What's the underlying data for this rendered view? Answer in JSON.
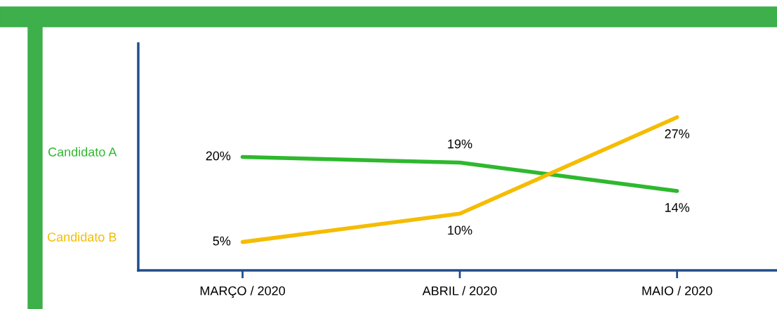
{
  "chart_data": {
    "type": "line",
    "categories": [
      "MARÇO / 2020",
      "ABRIL / 2020",
      "MAIO / 2020"
    ],
    "series": [
      {
        "name": "Candidato A",
        "color": "#2eb82e",
        "values": [
          20,
          19,
          14
        ],
        "value_labels": [
          "20%",
          "19%",
          "14%"
        ]
      },
      {
        "name": "Candidato B",
        "color": "#f5bc00",
        "values": [
          5,
          10,
          27
        ],
        "value_labels": [
          "5%",
          "10%",
          "27%"
        ]
      }
    ],
    "ylim": [
      0,
      40
    ],
    "grid": false,
    "legend": false,
    "marker": "none",
    "line_style": "solid"
  }
}
